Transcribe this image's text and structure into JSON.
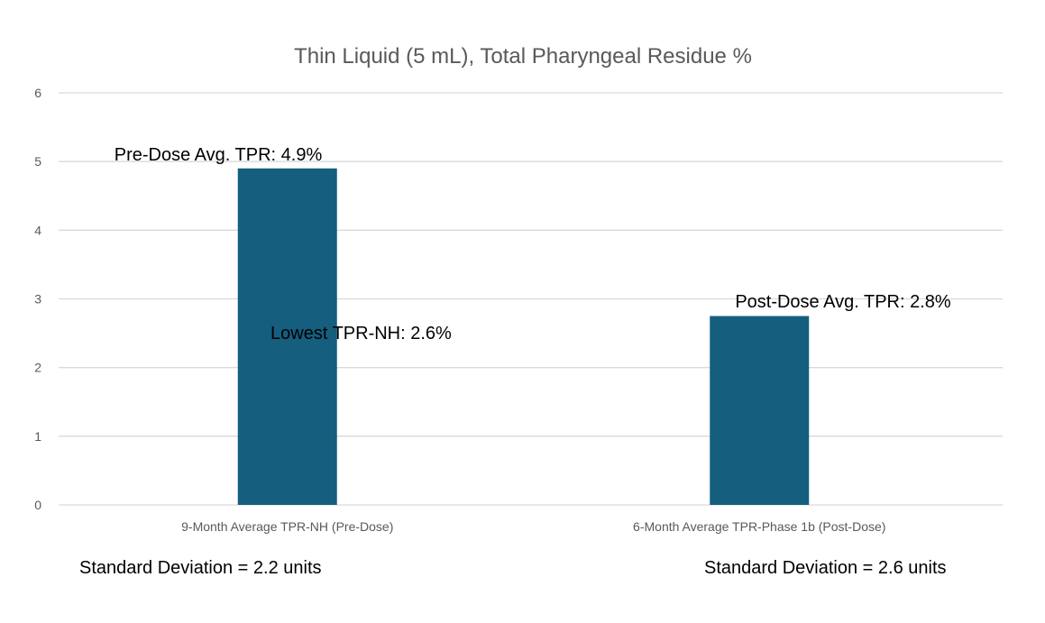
{
  "chart_data": {
    "type": "bar",
    "title": "Thin Liquid (5 mL), Total Pharyngeal Residue %",
    "xlabel": "",
    "ylabel": "",
    "ylim": [
      0,
      6
    ],
    "y_ticks": [
      0,
      1,
      2,
      3,
      4,
      5,
      6
    ],
    "grid": true,
    "legend": "none",
    "categories": [
      "9-Month Average TPR-NH (Pre-Dose)",
      "6-Month Average TPR-Phase 1b (Post-Dose)"
    ],
    "values": [
      4.9,
      2.75
    ],
    "bar_color": "#155E7E",
    "annotations": [
      {
        "text": "Pre-Dose Avg. TPR: 4.9%"
      },
      {
        "text": "Lowest TPR-NH: 2.6%"
      },
      {
        "text": "Post-Dose Avg. TPR: 2.8%"
      }
    ],
    "footnotes": [
      "Standard Deviation = 2.2 units",
      "Standard Deviation = 2.6 units"
    ]
  },
  "colors": {
    "grid": "#D9D9D9",
    "axis_text": "#595959",
    "title_text": "#595959",
    "label_text": "#000000"
  }
}
